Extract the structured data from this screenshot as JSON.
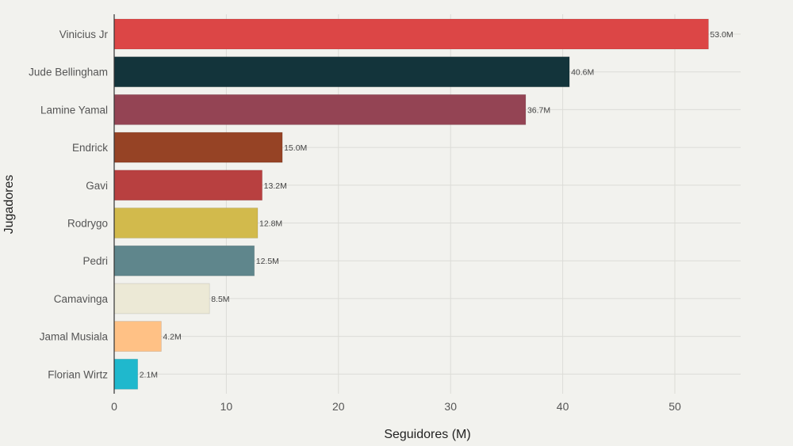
{
  "chart_data": {
    "type": "bar",
    "orientation": "horizontal",
    "title": "",
    "xlabel": "Seguidores (M)",
    "ylabel": "Jugadores",
    "xlim": [
      0,
      56
    ],
    "xticks": [
      0,
      10,
      20,
      30,
      40,
      50
    ],
    "grid": true,
    "legend": "none",
    "categories": [
      "Vinicius Jr",
      "Jude Bellingham",
      "Lamine Yamal",
      "Endrick",
      "Gavi",
      "Rodrygo",
      "Pedri",
      "Camavinga",
      "Jamal Musiala",
      "Florian Wirtz"
    ],
    "values": [
      53.0,
      40.6,
      36.7,
      15.0,
      13.2,
      12.8,
      12.5,
      8.5,
      4.2,
      2.1
    ],
    "value_labels": [
      "53.0M",
      "40.6M",
      "36.7M",
      "15.0M",
      "13.2M",
      "12.8M",
      "12.5M",
      "8.5M",
      "4.2M",
      "2.1M"
    ],
    "colors": [
      "#dc4646",
      "#13343b",
      "#944454",
      "#964325",
      "#b84040",
      "#d2ba4c",
      "#5f868c",
      "#ece9d6",
      "#ffc185",
      "#1fb8cd"
    ],
    "background": "#f2f2ee",
    "grid_color": "#dcdcd7"
  }
}
